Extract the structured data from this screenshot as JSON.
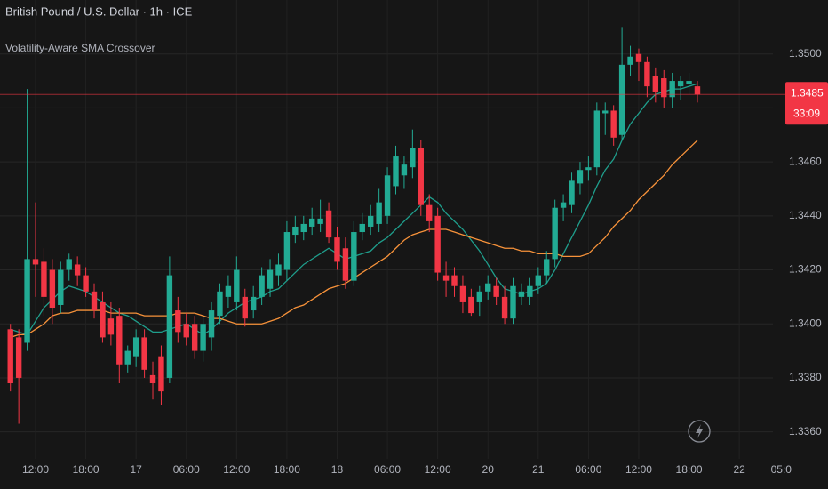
{
  "chart_data": {
    "type": "candlestick",
    "title": "British Pound / U.S. Dollar · 1h · ICE",
    "subtitle": "Volatility-Aware SMA Crossover",
    "categories": [
      null,
      null,
      null,
      "12:00",
      null,
      null,
      null,
      null,
      null,
      "18:00",
      null,
      null,
      null,
      null,
      null,
      "17",
      null,
      null,
      null,
      null,
      null,
      "06:00",
      null,
      null,
      null,
      null,
      null,
      "12:00",
      null,
      null,
      null,
      null,
      null,
      "18:00",
      null,
      null,
      null,
      null,
      null,
      "18",
      null,
      null,
      null,
      null,
      null,
      "06:00",
      null,
      null,
      null,
      null,
      null,
      "12:00",
      null,
      null,
      null,
      null,
      null,
      "20",
      null,
      null,
      null,
      null,
      null,
      "21",
      null,
      null,
      null,
      null,
      null,
      "06:00",
      null,
      null,
      null,
      null,
      null,
      "12:00",
      null,
      null,
      null,
      null,
      null,
      "18:00",
      null,
      null,
      null,
      null,
      null,
      "22",
      null,
      null,
      null,
      null,
      "05:0"
    ],
    "open": [
      1.3398,
      1.3395,
      1.3393,
      1.3424,
      1.3423,
      1.342,
      1.3407,
      1.342,
      1.3422,
      1.3418,
      1.3412,
      1.3408,
      1.3402,
      1.3403,
      1.3385,
      1.3388,
      1.3395,
      1.3381,
      1.3388,
      1.338,
      1.3405,
      1.34,
      1.34,
      1.339,
      1.3395,
      1.3403,
      1.341,
      1.3408,
      1.341,
      1.3405,
      1.341,
      1.3413,
      1.3418,
      1.342,
      1.3433,
      1.3434,
      1.3436,
      1.3437,
      1.3442,
      1.3432,
      1.3428,
      1.3416,
      1.3434,
      1.3436,
      1.3437,
      1.344,
      1.3451,
      1.3455,
      1.3458,
      1.3465,
      1.3444,
      1.344,
      1.3418,
      1.3418,
      1.3414,
      1.341,
      1.3408,
      1.3412,
      1.3414,
      1.341,
      1.3402,
      1.341,
      1.341,
      1.3414,
      1.3418,
      1.3424,
      1.3443,
      1.3444,
      1.3452,
      1.3457,
      1.3458,
      1.3478,
      1.3479,
      1.347,
      1.3496,
      1.35,
      1.3497,
      1.3492,
      1.3491,
      1.3484,
      1.3488,
      1.3489,
      1.3488,
      null,
      null,
      null,
      null,
      null,
      null,
      null,
      null,
      null,
      null
    ],
    "high": [
      1.34,
      1.3398,
      1.3487,
      1.3445,
      1.3428,
      1.3424,
      1.3423,
      1.3426,
      1.3425,
      1.3421,
      1.3415,
      1.3412,
      1.3408,
      1.3406,
      1.3392,
      1.3398,
      1.3398,
      1.3386,
      1.3392,
      1.3425,
      1.341,
      1.3404,
      1.3403,
      1.3403,
      1.3408,
      1.3415,
      1.3418,
      1.3425,
      1.3413,
      1.3414,
      1.3421,
      1.3424,
      1.3426,
      1.3438,
      1.344,
      1.344,
      1.3443,
      1.3446,
      1.3445,
      1.3436,
      1.3432,
      1.3438,
      1.3441,
      1.3444,
      1.345,
      1.3458,
      1.3466,
      1.3462,
      1.3472,
      1.3468,
      1.3448,
      1.3443,
      1.3423,
      1.3421,
      1.3418,
      1.3413,
      1.3414,
      1.3418,
      1.3417,
      1.3414,
      1.3417,
      1.3415,
      1.3417,
      1.3421,
      1.3427,
      1.3446,
      1.3448,
      1.3456,
      1.346,
      1.3462,
      1.3482,
      1.3482,
      1.3481,
      1.351,
      1.3503,
      1.3502,
      1.3499,
      1.3495,
      1.3494,
      1.3493,
      1.3492,
      1.3493,
      1.349,
      null,
      null,
      null,
      null,
      null,
      null,
      null,
      null,
      null,
      null
    ],
    "low": [
      1.3375,
      1.3363,
      1.339,
      1.341,
      1.3403,
      1.34,
      1.3404,
      1.3416,
      1.3414,
      1.341,
      1.3402,
      1.3393,
      1.3392,
      1.3378,
      1.3382,
      1.3384,
      1.338,
      1.3372,
      1.337,
      1.3378,
      1.3393,
      1.3392,
      1.3387,
      1.3386,
      1.339,
      1.34,
      1.3406,
      1.3405,
      1.3399,
      1.3402,
      1.3407,
      1.341,
      1.3414,
      1.3416,
      1.343,
      1.3431,
      1.3433,
      1.3434,
      1.343,
      1.342,
      1.3413,
      1.3414,
      1.3431,
      1.3433,
      1.3434,
      1.3437,
      1.3448,
      1.345,
      1.3454,
      1.344,
      1.3434,
      1.3416,
      1.341,
      1.341,
      1.3404,
      1.3403,
      1.3403,
      1.3409,
      1.3407,
      1.34,
      1.34,
      1.3407,
      1.3407,
      1.3411,
      1.3415,
      1.3421,
      1.3438,
      1.3441,
      1.3448,
      1.3453,
      1.3455,
      1.347,
      1.3466,
      1.3468,
      1.3492,
      1.349,
      1.3484,
      1.3482,
      1.348,
      1.348,
      1.3483,
      1.3485,
      1.3482,
      null,
      null,
      null,
      null,
      null,
      null,
      null,
      null,
      null,
      null
    ],
    "close": [
      1.3378,
      1.338,
      1.3424,
      1.3422,
      1.341,
      1.3406,
      1.342,
      1.3424,
      1.3418,
      1.3412,
      1.3405,
      1.3395,
      1.3396,
      1.3385,
      1.339,
      1.3395,
      1.3383,
      1.3378,
      1.3375,
      1.3418,
      1.3397,
      1.3395,
      1.339,
      1.34,
      1.3405,
      1.3412,
      1.3414,
      1.342,
      1.3402,
      1.341,
      1.3418,
      1.342,
      1.3422,
      1.3434,
      1.3436,
      1.3437,
      1.3439,
      1.3439,
      1.3432,
      1.3423,
      1.3416,
      1.3434,
      1.3437,
      1.344,
      1.3445,
      1.3455,
      1.3462,
      1.3459,
      1.3465,
      1.3444,
      1.3438,
      1.3419,
      1.3416,
      1.3414,
      1.3408,
      1.3404,
      1.3412,
      1.3415,
      1.341,
      1.3402,
      1.3414,
      1.3412,
      1.3414,
      1.3418,
      1.3424,
      1.3443,
      1.3445,
      1.3453,
      1.3457,
      1.3458,
      1.3479,
      1.3479,
      1.3469,
      1.3496,
      1.3499,
      1.3497,
      1.3488,
      1.3486,
      1.3484,
      1.349,
      1.349,
      1.349,
      1.3485,
      null,
      null,
      null,
      null,
      null,
      null,
      null,
      null,
      null,
      null
    ],
    "up_color": "#22ab94",
    "down_color": "#f23645",
    "overlays": [
      {
        "color": "#1f9e8c",
        "values": [
          1.3398,
          1.3397,
          1.3396,
          1.3401,
          1.3406,
          1.3409,
          1.3412,
          1.3414,
          1.3413,
          1.3412,
          1.341,
          1.3408,
          1.3406,
          1.3404,
          1.3403,
          1.3401,
          1.3399,
          1.3397,
          1.3397,
          1.3398,
          1.3399,
          1.34,
          1.3398,
          1.3396,
          1.3398,
          1.3401,
          1.3404,
          1.3406,
          1.3408,
          1.3409,
          1.341,
          1.3412,
          1.3413,
          1.3416,
          1.3419,
          1.3422,
          1.3424,
          1.3426,
          1.3428,
          1.3426,
          1.3424,
          1.3425,
          1.3426,
          1.3427,
          1.343,
          1.3432,
          1.3435,
          1.3438,
          1.3441,
          1.3444,
          1.3447,
          1.3445,
          1.3441,
          1.3438,
          1.3435,
          1.3431,
          1.3427,
          1.3422,
          1.3417,
          1.3413,
          1.3412,
          1.3411,
          1.3412,
          1.3413,
          1.3415,
          1.342,
          1.3426,
          1.3432,
          1.3438,
          1.3444,
          1.3451,
          1.3457,
          1.3461,
          1.3468,
          1.3474,
          1.3478,
          1.3482,
          1.3485,
          1.3486,
          1.3487,
          1.3487,
          1.3488,
          1.3489,
          null,
          null,
          null,
          null,
          null,
          null,
          null,
          null,
          null,
          null
        ]
      },
      {
        "color": "#f7923a",
        "values": [
          1.3395,
          1.3396,
          1.3396,
          1.3398,
          1.34,
          1.3403,
          1.3404,
          1.3404,
          1.3405,
          1.3405,
          1.3405,
          1.3405,
          1.3404,
          1.3404,
          1.3404,
          1.3404,
          1.3403,
          1.3403,
          1.3403,
          1.3403,
          1.3404,
          1.3404,
          1.3404,
          1.3403,
          1.3402,
          1.3402,
          1.3401,
          1.34,
          1.34,
          1.34,
          1.34,
          1.3401,
          1.3402,
          1.3404,
          1.3406,
          1.3407,
          1.3409,
          1.3411,
          1.3413,
          1.3414,
          1.3415,
          1.3417,
          1.3419,
          1.3421,
          1.3423,
          1.3425,
          1.3428,
          1.3431,
          1.3433,
          1.3434,
          1.3435,
          1.3435,
          1.3435,
          1.3434,
          1.3433,
          1.3432,
          1.3431,
          1.343,
          1.3429,
          1.3428,
          1.3428,
          1.3427,
          1.3427,
          1.3426,
          1.3426,
          1.3426,
          1.3425,
          1.3425,
          1.3425,
          1.3426,
          1.3429,
          1.3432,
          1.3436,
          1.3439,
          1.3442,
          1.3446,
          1.3449,
          1.3452,
          1.3455,
          1.3459,
          1.3462,
          1.3465,
          1.3468,
          null,
          null,
          null,
          null,
          null,
          null,
          null,
          null,
          null,
          null
        ]
      }
    ],
    "last_price": 1.3485,
    "countdown": "33:09",
    "ylim": [
      1.335,
      1.352
    ],
    "yticks": [
      {
        "value": 1.336,
        "label": "1.3360"
      },
      {
        "value": 1.338,
        "label": "1.3380"
      },
      {
        "value": 1.34,
        "label": "1.3400"
      },
      {
        "value": 1.342,
        "label": "1.3420"
      },
      {
        "value": 1.344,
        "label": "1.3440"
      },
      {
        "value": 1.346,
        "label": "1.3460"
      },
      {
        "value": 1.348,
        "label": "1.3480"
      },
      {
        "value": 1.35,
        "label": "1.3500"
      }
    ],
    "grid": true
  }
}
